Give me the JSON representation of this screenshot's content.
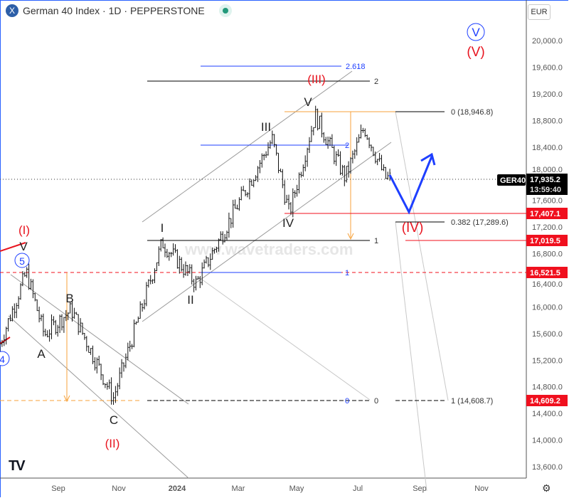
{
  "header": {
    "title": "German 40 Index · 1D · PEPPERSTONE",
    "symbol_icon": "X",
    "status_icon": "market-open-dot",
    "currency": "EUR"
  },
  "watermark": "www.wavetraders.com",
  "colors": {
    "wave_red": "#e8141f",
    "wave_blue": "#1e3fff",
    "fib_blue": "#1e3fff",
    "orange": "#f7a23b",
    "price_tag": "#000000",
    "level_red": "#f0101e"
  },
  "chart_data": {
    "type": "line",
    "style": "ohlc-bars",
    "x": [
      "2023-07-01",
      "2023-07-31",
      "2023-08-18",
      "2023-09-14",
      "2023-10-26",
      "2023-12-14",
      "2024-01-17",
      "2024-04-02",
      "2024-04-19",
      "2024-05-15",
      "2024-06-14",
      "2024-07-03",
      "2024-07-24"
    ],
    "y": [
      15300,
      16520,
      15580,
      15960,
      14630,
      16970,
      16350,
      18520,
      17400,
      18880,
      17940,
      18700,
      17935
    ],
    "ylim": [
      13600,
      20000
    ],
    "y_ticks": [
      "20,000.0",
      "19,600.0",
      "19,200.0",
      "18,800.0",
      "18,400.0",
      "18,000.0",
      "17,600.0",
      "17,200.0",
      "16,800.0",
      "16,400.0",
      "16,000.0",
      "15,600.0",
      "15,200.0",
      "14,800.0",
      "14,400.0",
      "14,000.0",
      "13,600.0"
    ],
    "x_ticks": [
      "Sep",
      "Nov",
      "2024",
      "Mar",
      "May",
      "Jul",
      "Sep",
      "Nov"
    ],
    "last_price": {
      "symbol": "GER40",
      "price": "17,935.2",
      "countdown": "13:59:40"
    },
    "level_tags": [
      "17,407.1",
      "17,019.5",
      "16,521.5",
      "14,609.2"
    ],
    "fib_labels": {
      "ext_2618": "2.618",
      "ext_2_black": "2",
      "ext_2_blue": "2",
      "one_black": "1",
      "one_blue": "1",
      "zero_blue": "0",
      "zero_black": "0",
      "retr_0": "0 (18,946.8)",
      "retr_0382": "0.382 (17,289.6)",
      "retr_1": "1 (14,608.7)"
    },
    "wave_labels": {
      "w4c": "4",
      "w5c": "5",
      "V_left": "V",
      "I_red": "(I)",
      "A": "A",
      "B": "B",
      "C": "C",
      "II_red": "(II)",
      "I": "I",
      "II": "II",
      "III": "III",
      "IV": "IV",
      "V": "V",
      "III_red": "(III)",
      "IV_red": "(IV)",
      "Vc": "V",
      "V_red": "(V)"
    }
  }
}
